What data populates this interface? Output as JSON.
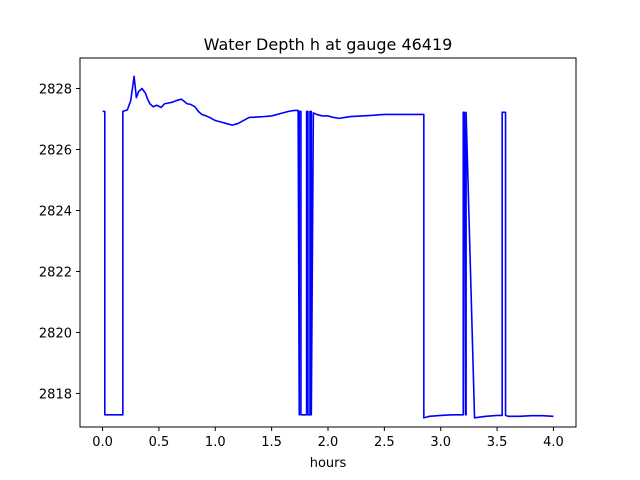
{
  "chart_data": {
    "type": "line",
    "title": "Water Depth h at gauge 46419",
    "xlabel": "hours",
    "ylabel": "",
    "xlim": [
      -0.2,
      4.2
    ],
    "ylim": [
      2816.9,
      2829.0
    ],
    "xticks": [
      0.0,
      0.5,
      1.0,
      1.5,
      2.0,
      2.5,
      3.0,
      3.5,
      4.0
    ],
    "xtick_labels": [
      "0.0",
      "0.5",
      "1.0",
      "1.5",
      "2.0",
      "2.5",
      "3.0",
      "3.5",
      "4.0"
    ],
    "yticks": [
      2818,
      2820,
      2822,
      2824,
      2826,
      2828
    ],
    "ytick_labels": [
      "2818",
      "2820",
      "2822",
      "2824",
      "2826",
      "2828"
    ],
    "grid": false,
    "color": "#0000ff",
    "series": [
      {
        "x": [
          0.0,
          0.02,
          0.02,
          0.18,
          0.18,
          0.22,
          0.25,
          0.28,
          0.3,
          0.32,
          0.35,
          0.38,
          0.4,
          0.42,
          0.45,
          0.48,
          0.52,
          0.55,
          0.58,
          0.62,
          0.65,
          0.7,
          0.75,
          0.78,
          0.82,
          0.85,
          0.88,
          0.92,
          0.95,
          1.0,
          1.05,
          1.1,
          1.15,
          1.2,
          1.25,
          1.3,
          1.4,
          1.5,
          1.6,
          1.65,
          1.7,
          1.735,
          1.745,
          1.745,
          1.76,
          1.76,
          1.81,
          1.81,
          1.822,
          1.822,
          1.84,
          1.84,
          1.852,
          1.852,
          1.87,
          1.9,
          1.95,
          2.0,
          2.05,
          2.1,
          2.15,
          2.2,
          2.3,
          2.4,
          2.5,
          2.6,
          2.7,
          2.8,
          2.85,
          2.85,
          2.9,
          3.0,
          3.1,
          3.2,
          3.2,
          3.21,
          3.22,
          3.225,
          3.225,
          3.3,
          3.4,
          3.5,
          3.545,
          3.545,
          3.56,
          3.57,
          3.575,
          3.575,
          3.6,
          3.7,
          3.8,
          3.9,
          4.0
        ],
        "y": [
          2827.25,
          2827.25,
          2817.3,
          2817.3,
          2827.25,
          2827.3,
          2827.6,
          2828.4,
          2827.7,
          2827.9,
          2828.0,
          2827.85,
          2827.65,
          2827.5,
          2827.4,
          2827.45,
          2827.38,
          2827.5,
          2827.52,
          2827.55,
          2827.6,
          2827.65,
          2827.5,
          2827.48,
          2827.4,
          2827.25,
          2827.15,
          2827.1,
          2827.05,
          2826.95,
          2826.9,
          2826.85,
          2826.8,
          2826.85,
          2826.95,
          2827.05,
          2827.07,
          2827.1,
          2827.2,
          2827.25,
          2827.28,
          2827.28,
          2817.3,
          2827.25,
          2827.25,
          2817.3,
          2817.3,
          2827.25,
          2827.25,
          2817.3,
          2817.3,
          2827.25,
          2827.25,
          2817.3,
          2827.2,
          2827.15,
          2827.1,
          2827.1,
          2827.05,
          2827.02,
          2827.05,
          2827.08,
          2827.1,
          2827.12,
          2827.15,
          2827.15,
          2827.15,
          2827.15,
          2827.15,
          2817.2,
          2817.25,
          2817.28,
          2817.3,
          2817.3,
          2827.22,
          2827.22,
          2817.3,
          2817.3,
          2827.22,
          2817.2,
          2817.25,
          2817.28,
          2817.28,
          2827.22,
          2827.22,
          2827.22,
          2827.22,
          2817.28,
          2817.25,
          2817.25,
          2817.27,
          2817.27,
          2817.25
        ]
      }
    ]
  }
}
